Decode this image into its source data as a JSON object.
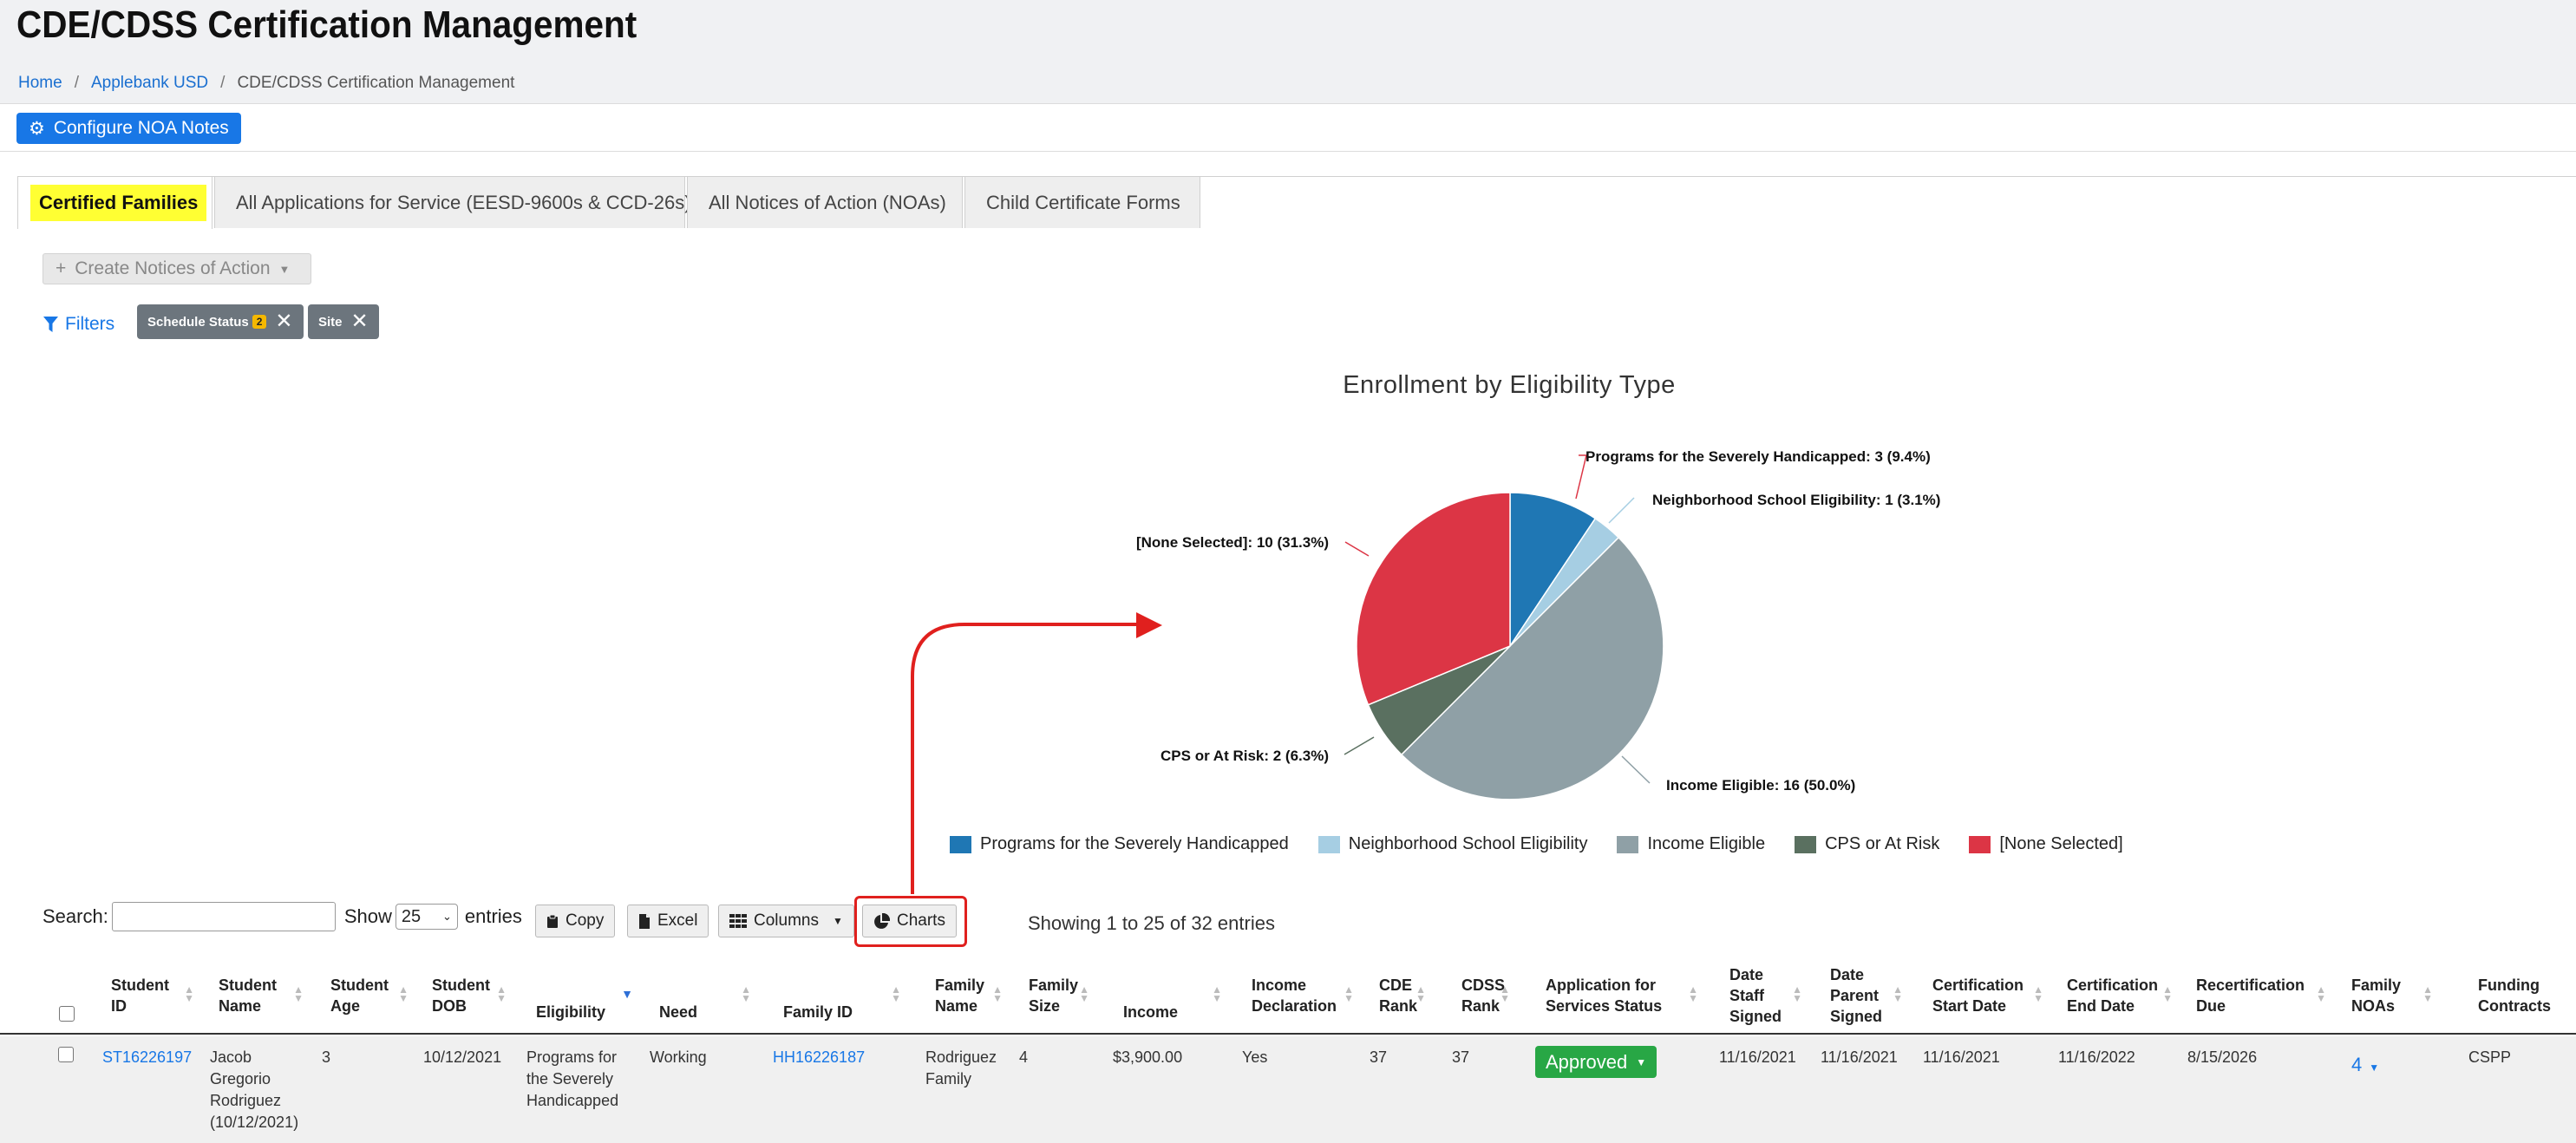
{
  "page": {
    "title": "CDE/CDSS Certification Management",
    "breadcrumb": [
      "Home",
      "Applebank USD",
      "CDE/CDSS Certification Management"
    ]
  },
  "toolbar": {
    "configure_label": "Configure NOA Notes"
  },
  "tabs": [
    {
      "label": "Certified Families",
      "active": true
    },
    {
      "label": "All Applications for Service (EESD-9600s & CCD-26s)"
    },
    {
      "label": "All Notices of Action (NOAs)"
    },
    {
      "label": "Child Certificate Forms"
    }
  ],
  "actions": {
    "create_noa_label": "Create Notices of Action"
  },
  "filters": {
    "label": "Filters",
    "chips": [
      {
        "label": "Schedule Status",
        "count": "2"
      },
      {
        "label": "Site"
      }
    ]
  },
  "chart_data": {
    "type": "pie",
    "title": "Enrollment by Eligibility Type",
    "slices": [
      {
        "name": "Programs for the Severely Handicapped",
        "value": 3,
        "percent": 9.4,
        "color": "#1f77b4",
        "label": "Programs for the Severely Handicapped: 3 (9.4%)"
      },
      {
        "name": "Neighborhood School Eligibility",
        "value": 1,
        "percent": 3.1,
        "color": "#a6cee3",
        "label": "Neighborhood School Eligibility: 1 (3.1%)"
      },
      {
        "name": "Income Eligible",
        "value": 16,
        "percent": 50.0,
        "color": "#8fa0a6",
        "label": "Income Eligible: 16 (50.0%)"
      },
      {
        "name": "CPS or At Risk",
        "value": 2,
        "percent": 6.3,
        "color": "#5a7060",
        "label": "CPS or At Risk: 2 (6.3%)"
      },
      {
        "name": "[None Selected]",
        "value": 10,
        "percent": 31.3,
        "color": "#dc3545",
        "label": "[None Selected]: 10 (31.3%)"
      }
    ],
    "legend": [
      "Programs for the Severely Handicapped",
      "Neighborhood School Eligibility",
      "Income Eligible",
      "CPS or At Risk",
      "[None Selected]"
    ]
  },
  "table_controls": {
    "search_label": "Search:",
    "show_label": "Show",
    "page_length": "25",
    "entries_label": "entries",
    "buttons": [
      "Copy",
      "Excel",
      "Columns",
      "Charts"
    ],
    "info": "Showing 1 to 25 of 32 entries"
  },
  "table": {
    "columns": [
      [
        "Student",
        "ID"
      ],
      [
        "Student",
        "Name"
      ],
      [
        "Student",
        "Age"
      ],
      [
        "Student",
        "DOB"
      ],
      [
        "Eligibility"
      ],
      [
        "Need"
      ],
      [
        "Family ID"
      ],
      [
        "Family",
        "Name"
      ],
      [
        "Family",
        "Size"
      ],
      [
        "Income"
      ],
      [
        "Income",
        "Declaration"
      ],
      [
        "CDE",
        "Rank"
      ],
      [
        "CDSS",
        "Rank"
      ],
      [
        "Application for",
        "Services Status"
      ],
      [
        "Date",
        "Staff",
        "Signed"
      ],
      [
        "Date",
        "Parent",
        "Signed"
      ],
      [
        "Certification",
        "Start Date"
      ],
      [
        "Certification",
        "End Date"
      ],
      [
        "Recertification",
        "Due"
      ],
      [
        "Family",
        "NOAs"
      ],
      [
        "Funding",
        "Contracts"
      ]
    ],
    "rows": [
      {
        "student_id": "ST16226197",
        "student_name": [
          "Jacob",
          "Gregorio",
          "Rodriguez",
          "(10/12/2021)"
        ],
        "age": "3",
        "dob": "10/12/2021",
        "eligibility": [
          "Programs for",
          "the Severely",
          "Handicapped"
        ],
        "need": "Working",
        "family_id": "HH16226187",
        "family_name": [
          "Rodriguez",
          "Family"
        ],
        "family_size": "4",
        "income": "$3,900.00",
        "income_declaration": "Yes",
        "cde_rank": "37",
        "cdss_rank": "37",
        "status": "Approved",
        "date_staff_signed": "11/16/2021",
        "date_parent_signed": "11/16/2021",
        "cert_start": "11/16/2021",
        "cert_end": "11/16/2022",
        "recert_due": "8/15/2026",
        "family_noas": "4",
        "funding": "CSPP"
      }
    ]
  }
}
